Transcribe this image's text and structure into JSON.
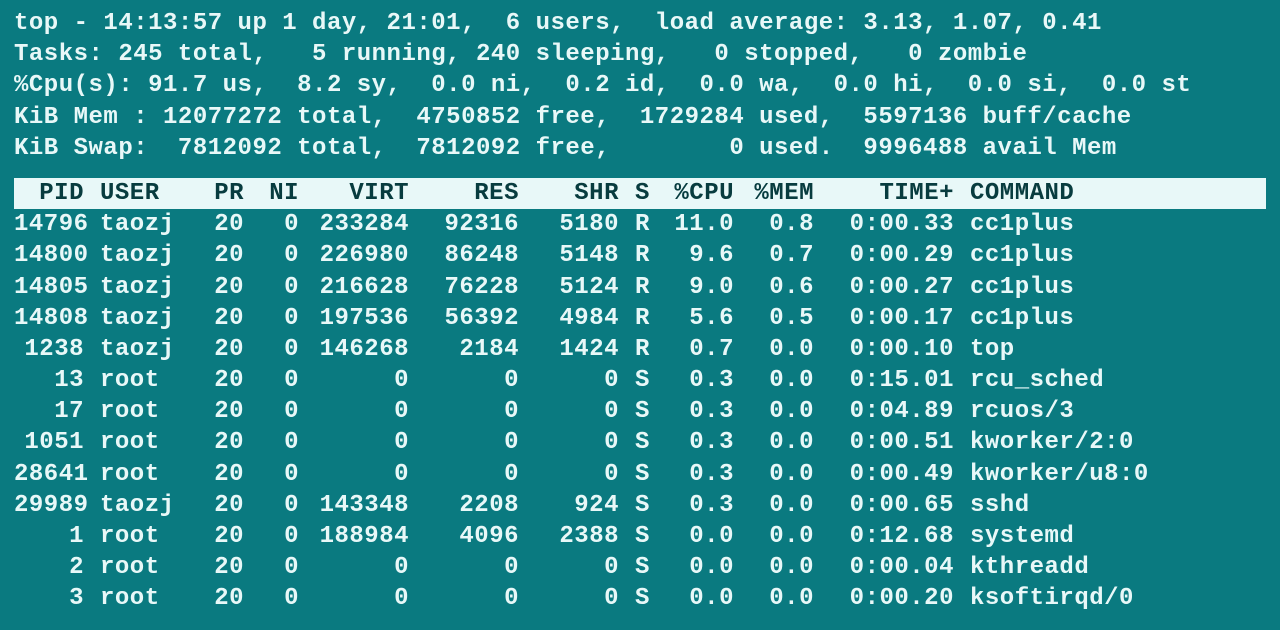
{
  "colors": {
    "background": "#0a7a80",
    "foreground": "#e8f8f8",
    "header_row_bg": "#e8f8f8",
    "header_row_fg": "#083c3f"
  },
  "summary": {
    "line1": "top - 14:13:57 up 1 day, 21:01,  6 users,  load average: 3.13, 1.07, 0.41",
    "line2": "Tasks: 245 total,   5 running, 240 sleeping,   0 stopped,   0 zombie",
    "line3": "%Cpu(s): 91.7 us,  8.2 sy,  0.0 ni,  0.2 id,  0.0 wa,  0.0 hi,  0.0 si,  0.0 st",
    "line4": "KiB Mem : 12077272 total,  4750852 free,  1729284 used,  5597136 buff/cache",
    "line5": "KiB Swap:  7812092 total,  7812092 free,        0 used.  9996488 avail Mem"
  },
  "columns": {
    "pid": "PID",
    "user": "USER",
    "pr": "PR",
    "ni": "NI",
    "virt": "VIRT",
    "res": "RES",
    "shr": "SHR",
    "s": "S",
    "cpu": "%CPU",
    "mem": "%MEM",
    "time": "TIME+",
    "cmd": "COMMAND"
  },
  "rows": [
    {
      "pid": "14796",
      "user": "taozj",
      "pr": "20",
      "ni": "0",
      "virt": "233284",
      "res": "92316",
      "shr": "5180",
      "s": "R",
      "cpu": "11.0",
      "mem": "0.8",
      "time": "0:00.33",
      "cmd": "cc1plus"
    },
    {
      "pid": "14800",
      "user": "taozj",
      "pr": "20",
      "ni": "0",
      "virt": "226980",
      "res": "86248",
      "shr": "5148",
      "s": "R",
      "cpu": "9.6",
      "mem": "0.7",
      "time": "0:00.29",
      "cmd": "cc1plus"
    },
    {
      "pid": "14805",
      "user": "taozj",
      "pr": "20",
      "ni": "0",
      "virt": "216628",
      "res": "76228",
      "shr": "5124",
      "s": "R",
      "cpu": "9.0",
      "mem": "0.6",
      "time": "0:00.27",
      "cmd": "cc1plus"
    },
    {
      "pid": "14808",
      "user": "taozj",
      "pr": "20",
      "ni": "0",
      "virt": "197536",
      "res": "56392",
      "shr": "4984",
      "s": "R",
      "cpu": "5.6",
      "mem": "0.5",
      "time": "0:00.17",
      "cmd": "cc1plus"
    },
    {
      "pid": "1238",
      "user": "taozj",
      "pr": "20",
      "ni": "0",
      "virt": "146268",
      "res": "2184",
      "shr": "1424",
      "s": "R",
      "cpu": "0.7",
      "mem": "0.0",
      "time": "0:00.10",
      "cmd": "top"
    },
    {
      "pid": "13",
      "user": "root",
      "pr": "20",
      "ni": "0",
      "virt": "0",
      "res": "0",
      "shr": "0",
      "s": "S",
      "cpu": "0.3",
      "mem": "0.0",
      "time": "0:15.01",
      "cmd": "rcu_sched"
    },
    {
      "pid": "17",
      "user": "root",
      "pr": "20",
      "ni": "0",
      "virt": "0",
      "res": "0",
      "shr": "0",
      "s": "S",
      "cpu": "0.3",
      "mem": "0.0",
      "time": "0:04.89",
      "cmd": "rcuos/3"
    },
    {
      "pid": "1051",
      "user": "root",
      "pr": "20",
      "ni": "0",
      "virt": "0",
      "res": "0",
      "shr": "0",
      "s": "S",
      "cpu": "0.3",
      "mem": "0.0",
      "time": "0:00.51",
      "cmd": "kworker/2:0"
    },
    {
      "pid": "28641",
      "user": "root",
      "pr": "20",
      "ni": "0",
      "virt": "0",
      "res": "0",
      "shr": "0",
      "s": "S",
      "cpu": "0.3",
      "mem": "0.0",
      "time": "0:00.49",
      "cmd": "kworker/u8:0"
    },
    {
      "pid": "29989",
      "user": "taozj",
      "pr": "20",
      "ni": "0",
      "virt": "143348",
      "res": "2208",
      "shr": "924",
      "s": "S",
      "cpu": "0.3",
      "mem": "0.0",
      "time": "0:00.65",
      "cmd": "sshd"
    },
    {
      "pid": "1",
      "user": "root",
      "pr": "20",
      "ni": "0",
      "virt": "188984",
      "res": "4096",
      "shr": "2388",
      "s": "S",
      "cpu": "0.0",
      "mem": "0.0",
      "time": "0:12.68",
      "cmd": "systemd"
    },
    {
      "pid": "2",
      "user": "root",
      "pr": "20",
      "ni": "0",
      "virt": "0",
      "res": "0",
      "shr": "0",
      "s": "S",
      "cpu": "0.0",
      "mem": "0.0",
      "time": "0:00.04",
      "cmd": "kthreadd"
    },
    {
      "pid": "3",
      "user": "root",
      "pr": "20",
      "ni": "0",
      "virt": "0",
      "res": "0",
      "shr": "0",
      "s": "S",
      "cpu": "0.0",
      "mem": "0.0",
      "time": "0:00.20",
      "cmd": "ksoftirqd/0"
    }
  ]
}
